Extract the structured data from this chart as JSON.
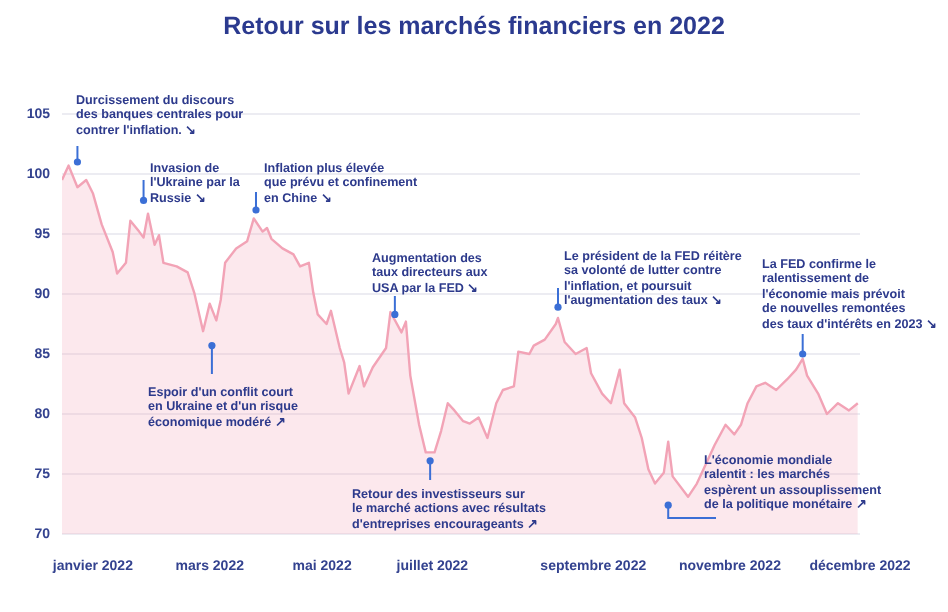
{
  "chart_data": {
    "type": "area",
    "title": "Retour sur les marchés financiers en 2022",
    "x": [
      "2022-01-03",
      "2022-01-06",
      "2022-01-10",
      "2022-01-14",
      "2022-01-17",
      "2022-01-21",
      "2022-01-26",
      "2022-01-28",
      "2022-02-01",
      "2022-02-03",
      "2022-02-07",
      "2022-02-09",
      "2022-02-11",
      "2022-02-14",
      "2022-02-16",
      "2022-02-18",
      "2022-02-24",
      "2022-03-01",
      "2022-03-04",
      "2022-03-08",
      "2022-03-11",
      "2022-03-14",
      "2022-03-16",
      "2022-03-18",
      "2022-03-23",
      "2022-03-28",
      "2022-03-31",
      "2022-04-04",
      "2022-04-06",
      "2022-04-08",
      "2022-04-13",
      "2022-04-18",
      "2022-04-21",
      "2022-04-25",
      "2022-04-27",
      "2022-04-29",
      "2022-05-03",
      "2022-05-05",
      "2022-05-09",
      "2022-05-11",
      "2022-05-13",
      "2022-05-18",
      "2022-05-20",
      "2022-05-24",
      "2022-05-30",
      "2022-06-01",
      "2022-06-06",
      "2022-06-08",
      "2022-06-10",
      "2022-06-14",
      "2022-06-17",
      "2022-06-21",
      "2022-06-24",
      "2022-06-27",
      "2022-06-30",
      "2022-07-04",
      "2022-07-07",
      "2022-07-11",
      "2022-07-15",
      "2022-07-19",
      "2022-07-22",
      "2022-07-27",
      "2022-07-29",
      "2022-08-03",
      "2022-08-05",
      "2022-08-10",
      "2022-08-15",
      "2022-08-16",
      "2022-08-19",
      "2022-08-24",
      "2022-08-29",
      "2022-08-31",
      "2022-09-05",
      "2022-09-09",
      "2022-09-13",
      "2022-09-15",
      "2022-09-20",
      "2022-09-23",
      "2022-09-26",
      "2022-09-29",
      "2022-10-03",
      "2022-10-05",
      "2022-10-07",
      "2022-10-14",
      "2022-10-18",
      "2022-10-21",
      "2022-10-26",
      "2022-10-31",
      "2022-11-04",
      "2022-11-07",
      "2022-11-10",
      "2022-11-14",
      "2022-11-18",
      "2022-11-23",
      "2022-11-28",
      "2022-12-02",
      "2022-12-05",
      "2022-12-07",
      "2022-12-12",
      "2022-12-16",
      "2022-12-21",
      "2022-12-26",
      "2022-12-30"
    ],
    "series": [
      {
        "color": "#f2a3b6",
        "values": [
          99.5,
          100.7,
          98.9,
          99.5,
          98.4,
          95.8,
          93.5,
          91.7,
          92.6,
          96.1,
          95.2,
          94.7,
          96.7,
          94.1,
          94.9,
          92.6,
          92.3,
          91.8,
          90.1,
          86.9,
          89.2,
          87.8,
          89.5,
          92.6,
          93.8,
          94.4,
          96.3,
          95.2,
          95.5,
          94.6,
          93.8,
          93.3,
          92.3,
          92.6,
          90.1,
          88.3,
          87.5,
          88.6,
          85.5,
          84.3,
          81.7,
          84.0,
          82.3,
          83.9,
          85.5,
          88.5,
          86.8,
          87.7,
          83.2,
          79.1,
          76.8,
          76.8,
          78.6,
          80.9,
          80.3,
          79.4,
          79.2,
          79.7,
          78.0,
          80.9,
          82.0,
          82.3,
          85.2,
          85.0,
          85.7,
          86.2,
          87.5,
          88.0,
          86.0,
          85.0,
          85.5,
          83.4,
          81.7,
          80.9,
          83.7,
          80.9,
          79.7,
          78.0,
          75.4,
          74.2,
          75.1,
          77.7,
          74.8,
          73.1,
          74.2,
          75.4,
          77.4,
          79.1,
          78.3,
          79.1,
          80.9,
          82.3,
          82.6,
          82.0,
          82.9,
          83.7,
          84.6,
          83.2,
          81.7,
          80.0,
          80.9,
          80.3,
          80.9
        ]
      }
    ],
    "xlim": [
      "2022-01-03",
      "2022-12-31"
    ],
    "xticks": [
      {
        "value": "2022-01-17",
        "label": "janvier 2022"
      },
      {
        "value": "2022-03-11",
        "label": "mars 2022"
      },
      {
        "value": "2022-05-01",
        "label": "mai 2022"
      },
      {
        "value": "2022-06-20",
        "label": "juillet 2022"
      },
      {
        "value": "2022-09-01",
        "label": "septembre 2022"
      },
      {
        "value": "2022-11-02",
        "label": "novembre 2022"
      },
      {
        "value": "2022-12-31",
        "label": "décembre 2022"
      }
    ],
    "ylim": [
      70,
      105
    ],
    "yticks": [
      70,
      75,
      80,
      85,
      90,
      95,
      100,
      105
    ],
    "grid": "y",
    "legend": false,
    "annotations": [
      {
        "text": "Durcissement du discours\ndes banques centrales pour\ncontrer l'inflation. ↘",
        "x": "2022-01-10",
        "y": 101
      },
      {
        "text": "Invasion de\nl'Ukraine par la\nRussie ↘",
        "x": "2022-02-09",
        "y": 97.8
      },
      {
        "text": "Inflation plus élevée\nque prévu et confinement\nen Chine ↘",
        "x": "2022-04-01",
        "y": 97
      },
      {
        "text": "Augmentation des\ntaux directeurs aux\nUSA par la FED ↘",
        "x": "2022-06-03",
        "y": 88.3
      },
      {
        "text": "Le président de la FED réitère\nsa volonté de lutter contre\nl'inflation, et poursuit\nl'augmentation des taux ↘",
        "x": "2022-08-16",
        "y": 88.9
      },
      {
        "text": "La FED confirme le\nralentissement de\nl'économie mais prévoit\nde nouvelles remontées\ndes taux d'intérêts en 2023 ↘",
        "x": "2022-12-05",
        "y": 85
      },
      {
        "text": "Espoir d'un conflit court\nen Ukraine et d'un risque\néconomique modéré ↗",
        "x": "2022-03-12",
        "y": 85.7
      },
      {
        "text": "Retour des investisseurs sur\nle marché actions avec résultats\nd'entreprises encourageants ↗",
        "x": "2022-06-19",
        "y": 76.1
      },
      {
        "text": "L'économie mondiale\nralentit : les marchés\nespèrent un assouplissement\nde la politique monétaire ↗",
        "x": "2022-10-05",
        "y": 72.4
      }
    ]
  }
}
